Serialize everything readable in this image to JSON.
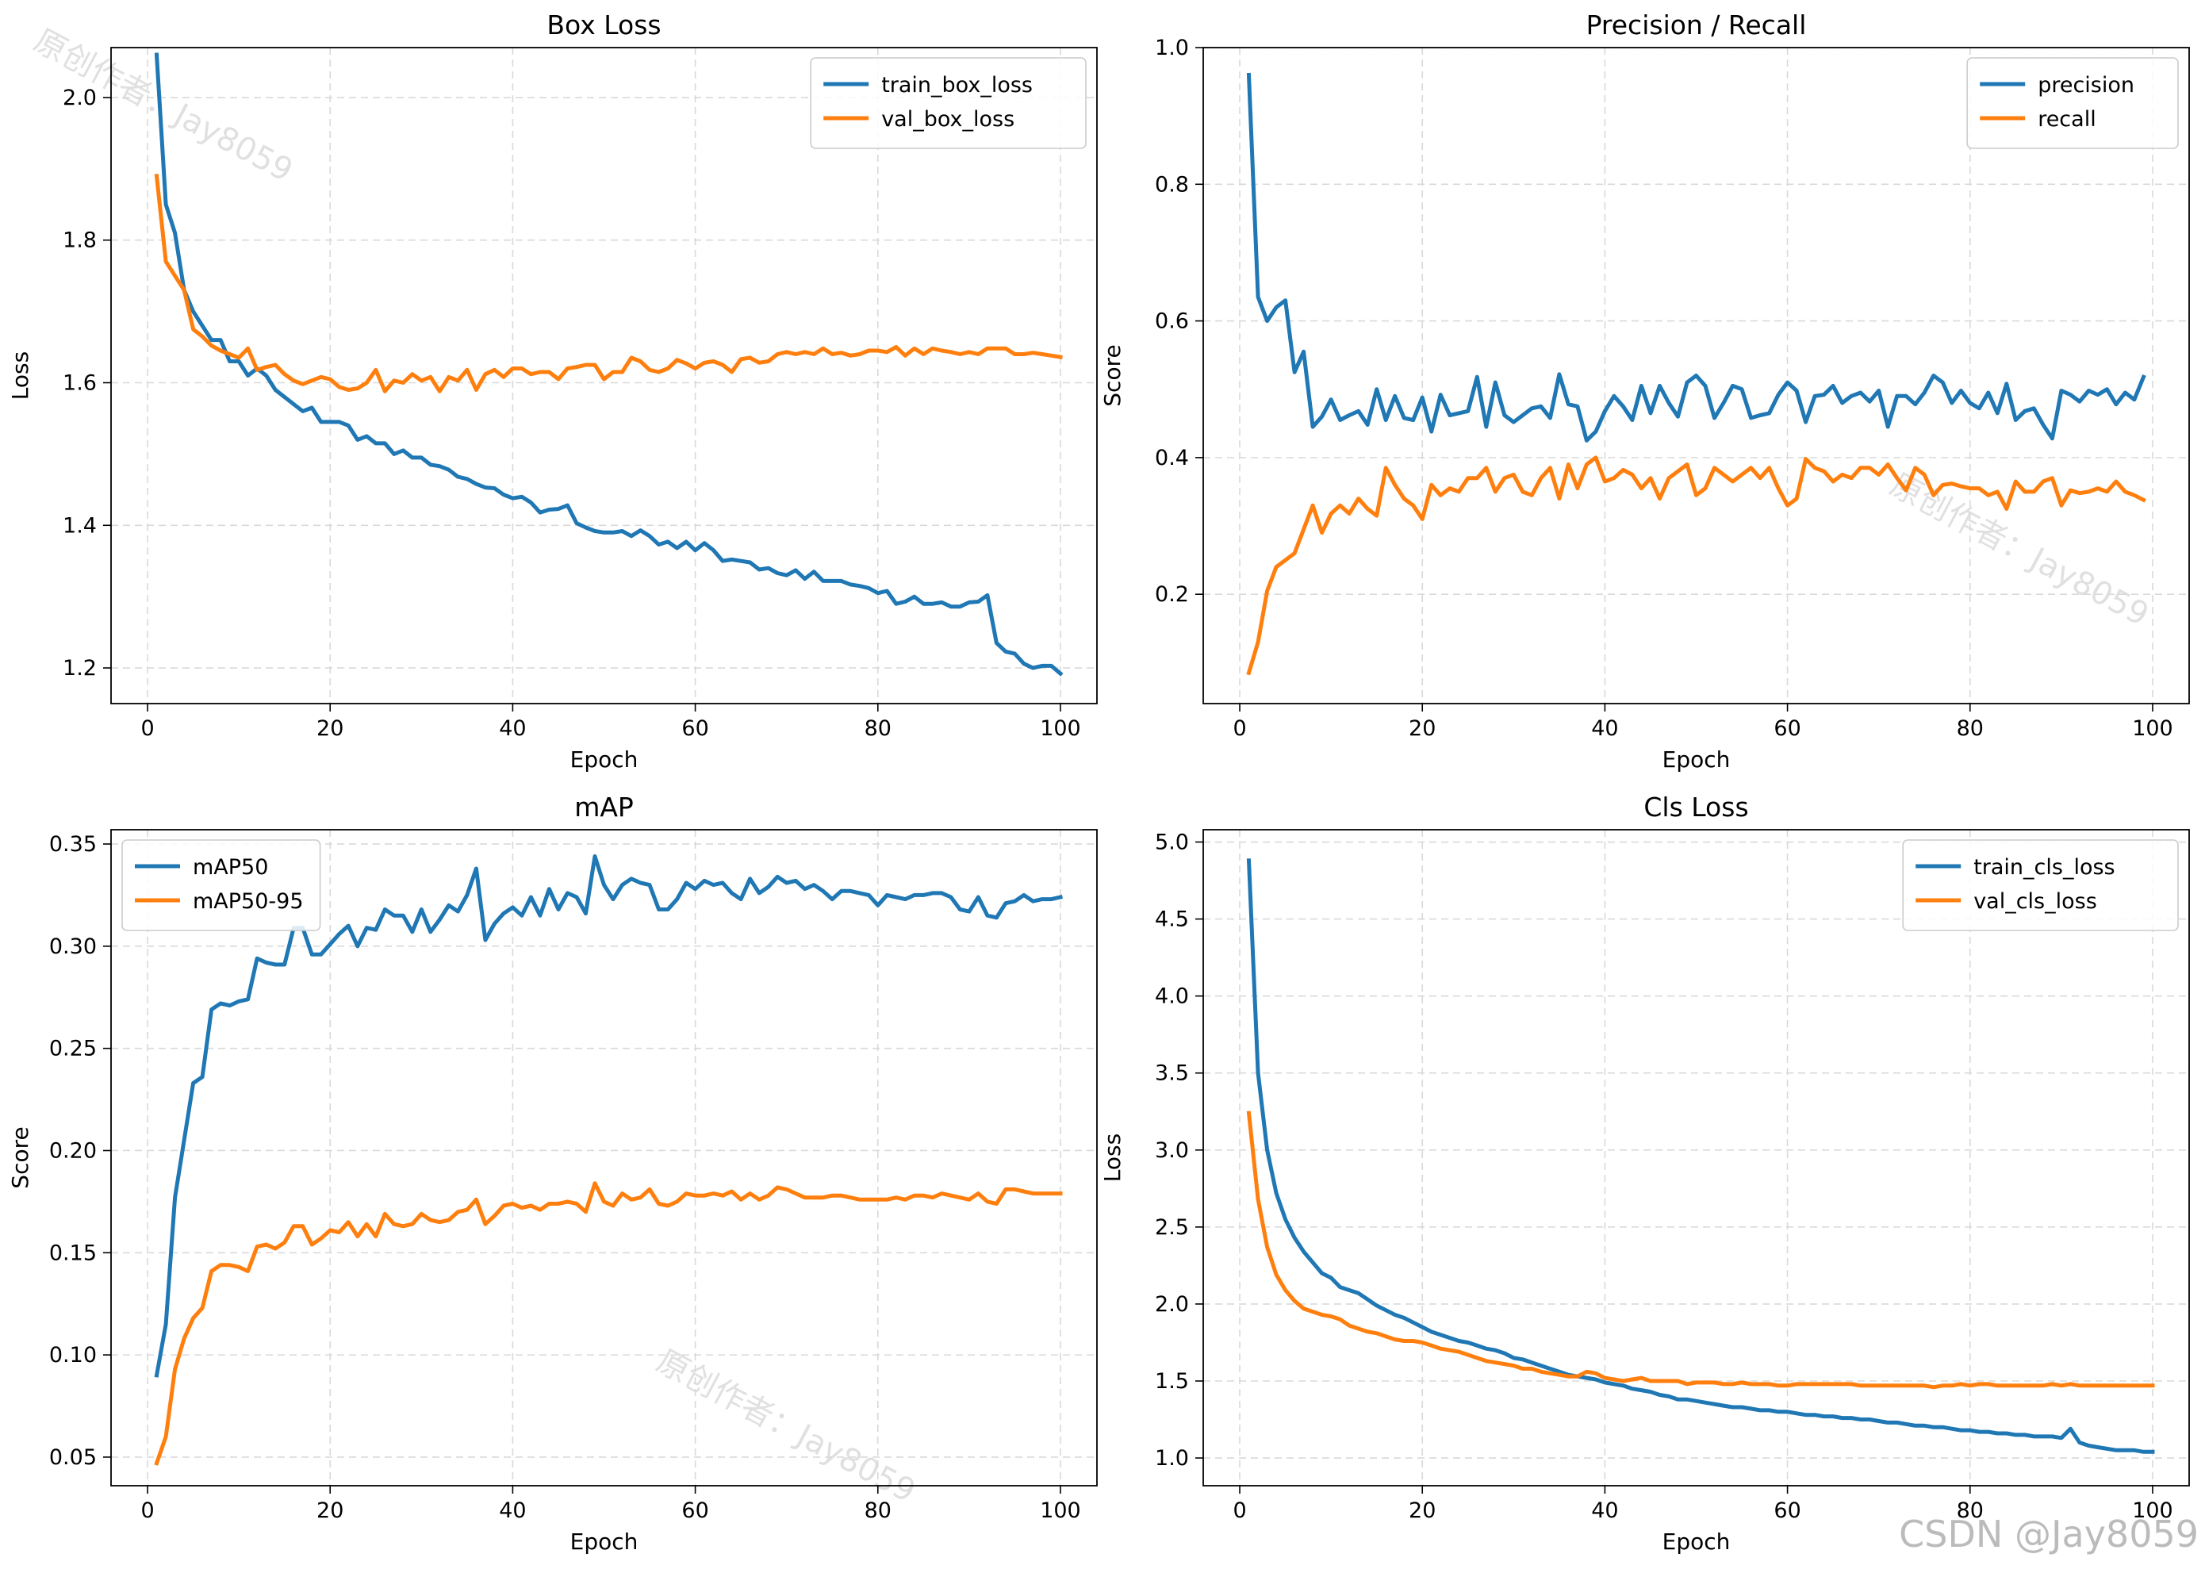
{
  "watermark": {
    "text": "原创作者：Jay8059",
    "footer": "CSDN @Jay8059",
    "color": "#c8c8c8"
  },
  "colors": {
    "blue": "#1f77b4",
    "orange": "#ff7f0e",
    "grid": "#d9d9d9"
  },
  "chart_data": [
    {
      "type": "line",
      "title": "Box Loss",
      "xlabel": "Epoch",
      "ylabel": "Loss",
      "xlim": [
        -4,
        104
      ],
      "ylim": [
        1.15,
        2.07
      ],
      "xticks": [
        0,
        20,
        40,
        60,
        80,
        100
      ],
      "yticks": [
        1.2,
        1.4,
        1.6,
        1.8,
        2.0
      ],
      "ytick_labels": [
        "1.2",
        "1.4",
        "1.6",
        "1.8",
        "2.0"
      ],
      "grid": true,
      "legend": "top-right",
      "series": [
        {
          "name": "train_box_loss",
          "color": "#1f77b4",
          "y": [
            2.06,
            1.85,
            1.81,
            1.73,
            1.7,
            1.68,
            1.66,
            1.66,
            1.63,
            1.63,
            1.61,
            1.62,
            1.61,
            1.59,
            1.58,
            1.57,
            1.56,
            1.565,
            1.545,
            1.545,
            1.545,
            1.54,
            1.52,
            1.525,
            1.515,
            1.515,
            1.5,
            1.505,
            1.495,
            1.495,
            1.485,
            1.483,
            1.478,
            1.468,
            1.465,
            1.458,
            1.453,
            1.452,
            1.443,
            1.438,
            1.44,
            1.432,
            1.418,
            1.422,
            1.423,
            1.428,
            1.403,
            1.397,
            1.392,
            1.39,
            1.39,
            1.392,
            1.385,
            1.393,
            1.385,
            1.373,
            1.377,
            1.368,
            1.377,
            1.365,
            1.375,
            1.365,
            1.35,
            1.352,
            1.35,
            1.348,
            1.338,
            1.34,
            1.333,
            1.33,
            1.337,
            1.325,
            1.335,
            1.322,
            1.322,
            1.322,
            1.317,
            1.315,
            1.312,
            1.305,
            1.308,
            1.29,
            1.293,
            1.3,
            1.29,
            1.29,
            1.292,
            1.286,
            1.286,
            1.292,
            1.293,
            1.302,
            1.235,
            1.223,
            1.22,
            1.206,
            1.2,
            1.203,
            1.203,
            1.192
          ]
        },
        {
          "name": "val_box_loss",
          "color": "#ff7f0e",
          "y": [
            1.89,
            1.77,
            1.75,
            1.73,
            1.675,
            1.665,
            1.652,
            1.645,
            1.64,
            1.635,
            1.648,
            1.618,
            1.622,
            1.625,
            1.612,
            1.603,
            1.598,
            1.603,
            1.608,
            1.605,
            1.594,
            1.59,
            1.592,
            1.6,
            1.618,
            1.588,
            1.603,
            1.6,
            1.612,
            1.603,
            1.608,
            1.588,
            1.608,
            1.603,
            1.618,
            1.59,
            1.612,
            1.618,
            1.608,
            1.62,
            1.62,
            1.612,
            1.615,
            1.615,
            1.605,
            1.62,
            1.622,
            1.625,
            1.625,
            1.605,
            1.615,
            1.615,
            1.635,
            1.63,
            1.618,
            1.615,
            1.62,
            1.632,
            1.627,
            1.62,
            1.628,
            1.63,
            1.625,
            1.615,
            1.633,
            1.635,
            1.628,
            1.63,
            1.64,
            1.643,
            1.64,
            1.643,
            1.64,
            1.648,
            1.64,
            1.642,
            1.638,
            1.64,
            1.645,
            1.645,
            1.643,
            1.65,
            1.638,
            1.648,
            1.64,
            1.648,
            1.645,
            1.643,
            1.64,
            1.643,
            1.64,
            1.648,
            1.648,
            1.648,
            1.64,
            1.64,
            1.642,
            1.64,
            1.638,
            1.636
          ]
        }
      ]
    },
    {
      "type": "line",
      "title": "Precision / Recall",
      "xlabel": "Epoch",
      "ylabel": "Score",
      "xlim": [
        -4,
        104
      ],
      "ylim": [
        0.04,
        1.0
      ],
      "xticks": [
        0,
        20,
        40,
        60,
        80,
        100
      ],
      "yticks": [
        0.2,
        0.4,
        0.6,
        0.8,
        1.0
      ],
      "ytick_labels": [
        "0.2",
        "0.4",
        "0.6",
        "0.8",
        "1.0"
      ],
      "grid": true,
      "legend": "top-right",
      "series": [
        {
          "name": "precision",
          "color": "#1f77b4",
          "y": [
            0.96,
            0.635,
            0.6,
            0.62,
            0.63,
            0.525,
            0.555,
            0.445,
            0.46,
            0.485,
            0.455,
            0.462,
            0.468,
            0.448,
            0.5,
            0.455,
            0.49,
            0.458,
            0.455,
            0.488,
            0.438,
            0.492,
            0.462,
            0.465,
            0.468,
            0.518,
            0.445,
            0.51,
            0.462,
            0.452,
            0.462,
            0.472,
            0.475,
            0.458,
            0.522,
            0.478,
            0.475,
            0.425,
            0.438,
            0.468,
            0.49,
            0.475,
            0.455,
            0.505,
            0.465,
            0.505,
            0.48,
            0.46,
            0.51,
            0.52,
            0.505,
            0.458,
            0.48,
            0.505,
            0.5,
            0.458,
            0.462,
            0.465,
            0.492,
            0.51,
            0.498,
            0.452,
            0.49,
            0.492,
            0.505,
            0.48,
            0.49,
            0.495,
            0.482,
            0.498,
            0.445,
            0.49,
            0.49,
            0.478,
            0.495,
            0.52,
            0.51,
            0.48,
            0.498,
            0.48,
            0.472,
            0.495,
            0.465,
            0.508,
            0.455,
            0.468,
            0.472,
            0.448,
            0.428,
            0.498,
            0.492,
            0.482,
            0.498,
            0.492,
            0.5,
            0.478,
            0.495,
            0.485,
            0.518
          ]
        },
        {
          "name": "recall",
          "color": "#ff7f0e",
          "y": [
            0.085,
            0.13,
            0.205,
            0.24,
            0.25,
            0.26,
            0.295,
            0.33,
            0.29,
            0.318,
            0.33,
            0.318,
            0.34,
            0.325,
            0.315,
            0.385,
            0.36,
            0.34,
            0.33,
            0.31,
            0.36,
            0.345,
            0.355,
            0.35,
            0.37,
            0.37,
            0.385,
            0.35,
            0.37,
            0.375,
            0.35,
            0.345,
            0.37,
            0.385,
            0.34,
            0.39,
            0.355,
            0.39,
            0.4,
            0.365,
            0.37,
            0.382,
            0.375,
            0.355,
            0.37,
            0.34,
            0.37,
            0.38,
            0.39,
            0.345,
            0.355,
            0.385,
            0.375,
            0.365,
            0.375,
            0.385,
            0.37,
            0.385,
            0.355,
            0.33,
            0.34,
            0.398,
            0.385,
            0.38,
            0.365,
            0.375,
            0.37,
            0.385,
            0.385,
            0.375,
            0.39,
            0.37,
            0.352,
            0.385,
            0.375,
            0.345,
            0.36,
            0.362,
            0.358,
            0.355,
            0.355,
            0.345,
            0.35,
            0.325,
            0.365,
            0.35,
            0.35,
            0.365,
            0.37,
            0.33,
            0.352,
            0.348,
            0.35,
            0.355,
            0.35,
            0.365,
            0.35,
            0.345,
            0.338
          ]
        }
      ]
    },
    {
      "type": "line",
      "title": "mAP",
      "xlabel": "Epoch",
      "ylabel": "Score",
      "xlim": [
        -4,
        104
      ],
      "ylim": [
        0.036,
        0.357
      ],
      "xticks": [
        0,
        20,
        40,
        60,
        80,
        100
      ],
      "yticks": [
        0.05,
        0.1,
        0.15,
        0.2,
        0.25,
        0.3,
        0.35
      ],
      "ytick_labels": [
        "0.05",
        "0.10",
        "0.15",
        "0.20",
        "0.25",
        "0.30",
        "0.35"
      ],
      "grid": true,
      "legend": "top-left",
      "series": [
        {
          "name": "mAP50",
          "color": "#1f77b4",
          "y": [
            0.09,
            0.115,
            0.177,
            0.205,
            0.233,
            0.236,
            0.269,
            0.272,
            0.271,
            0.273,
            0.274,
            0.294,
            0.292,
            0.291,
            0.291,
            0.309,
            0.309,
            0.296,
            0.296,
            0.301,
            0.306,
            0.31,
            0.3,
            0.309,
            0.308,
            0.318,
            0.315,
            0.315,
            0.307,
            0.318,
            0.307,
            0.313,
            0.32,
            0.317,
            0.325,
            0.338,
            0.303,
            0.311,
            0.316,
            0.319,
            0.315,
            0.324,
            0.315,
            0.328,
            0.318,
            0.326,
            0.324,
            0.316,
            0.344,
            0.33,
            0.323,
            0.33,
            0.333,
            0.331,
            0.33,
            0.318,
            0.318,
            0.323,
            0.331,
            0.328,
            0.332,
            0.33,
            0.331,
            0.326,
            0.323,
            0.333,
            0.326,
            0.329,
            0.334,
            0.331,
            0.332,
            0.328,
            0.33,
            0.327,
            0.323,
            0.327,
            0.327,
            0.326,
            0.325,
            0.32,
            0.325,
            0.324,
            0.323,
            0.325,
            0.325,
            0.326,
            0.326,
            0.324,
            0.318,
            0.317,
            0.324,
            0.315,
            0.314,
            0.321,
            0.322,
            0.325,
            0.322,
            0.323,
            0.323,
            0.324
          ]
        },
        {
          "name": "mAP50-95",
          "color": "#ff7f0e",
          "y": [
            0.047,
            0.06,
            0.093,
            0.108,
            0.118,
            0.123,
            0.141,
            0.144,
            0.144,
            0.143,
            0.141,
            0.153,
            0.154,
            0.152,
            0.155,
            0.163,
            0.163,
            0.154,
            0.157,
            0.161,
            0.16,
            0.165,
            0.158,
            0.164,
            0.158,
            0.169,
            0.164,
            0.163,
            0.164,
            0.169,
            0.166,
            0.165,
            0.166,
            0.17,
            0.171,
            0.176,
            0.164,
            0.168,
            0.173,
            0.174,
            0.172,
            0.173,
            0.171,
            0.174,
            0.174,
            0.175,
            0.174,
            0.17,
            0.184,
            0.175,
            0.173,
            0.179,
            0.176,
            0.177,
            0.181,
            0.174,
            0.173,
            0.175,
            0.179,
            0.178,
            0.178,
            0.179,
            0.178,
            0.18,
            0.176,
            0.179,
            0.176,
            0.178,
            0.182,
            0.181,
            0.179,
            0.177,
            0.177,
            0.177,
            0.178,
            0.178,
            0.177,
            0.176,
            0.176,
            0.176,
            0.176,
            0.177,
            0.176,
            0.178,
            0.178,
            0.177,
            0.179,
            0.178,
            0.177,
            0.176,
            0.179,
            0.175,
            0.174,
            0.181,
            0.181,
            0.18,
            0.179,
            0.179,
            0.179,
            0.179
          ]
        }
      ]
    },
    {
      "type": "line",
      "title": "Cls Loss",
      "xlabel": "Epoch",
      "ylabel": "Loss",
      "xlim": [
        -4,
        104
      ],
      "ylim": [
        0.82,
        5.08
      ],
      "xticks": [
        0,
        20,
        40,
        60,
        80,
        100
      ],
      "yticks": [
        1.0,
        1.5,
        2.0,
        2.5,
        3.0,
        3.5,
        4.0,
        4.5,
        5.0
      ],
      "ytick_labels": [
        "1.0",
        "1.5",
        "2.0",
        "2.5",
        "3.0",
        "3.5",
        "4.0",
        "4.5",
        "5.0"
      ],
      "grid": true,
      "legend": "top-right",
      "series": [
        {
          "name": "train_cls_loss",
          "color": "#1f77b4",
          "y": [
            4.88,
            3.5,
            3.0,
            2.72,
            2.55,
            2.43,
            2.34,
            2.27,
            2.2,
            2.17,
            2.11,
            2.09,
            2.07,
            2.03,
            1.99,
            1.96,
            1.93,
            1.91,
            1.88,
            1.85,
            1.82,
            1.8,
            1.78,
            1.76,
            1.75,
            1.73,
            1.71,
            1.7,
            1.68,
            1.65,
            1.64,
            1.62,
            1.6,
            1.58,
            1.56,
            1.54,
            1.53,
            1.52,
            1.51,
            1.49,
            1.48,
            1.47,
            1.45,
            1.44,
            1.43,
            1.41,
            1.4,
            1.38,
            1.38,
            1.37,
            1.36,
            1.35,
            1.34,
            1.33,
            1.33,
            1.32,
            1.31,
            1.31,
            1.3,
            1.3,
            1.29,
            1.28,
            1.28,
            1.27,
            1.27,
            1.26,
            1.26,
            1.25,
            1.25,
            1.24,
            1.23,
            1.23,
            1.22,
            1.21,
            1.21,
            1.2,
            1.2,
            1.19,
            1.18,
            1.18,
            1.17,
            1.17,
            1.16,
            1.16,
            1.15,
            1.15,
            1.14,
            1.14,
            1.14,
            1.13,
            1.19,
            1.1,
            1.08,
            1.07,
            1.06,
            1.05,
            1.05,
            1.05,
            1.04,
            1.04
          ]
        },
        {
          "name": "val_cls_loss",
          "color": "#ff7f0e",
          "y": [
            3.24,
            2.68,
            2.37,
            2.19,
            2.09,
            2.02,
            1.97,
            1.95,
            1.93,
            1.92,
            1.9,
            1.86,
            1.84,
            1.82,
            1.81,
            1.79,
            1.77,
            1.76,
            1.76,
            1.75,
            1.73,
            1.71,
            1.7,
            1.69,
            1.67,
            1.65,
            1.63,
            1.62,
            1.61,
            1.6,
            1.58,
            1.58,
            1.56,
            1.55,
            1.54,
            1.53,
            1.53,
            1.56,
            1.55,
            1.52,
            1.51,
            1.5,
            1.51,
            1.52,
            1.5,
            1.5,
            1.5,
            1.5,
            1.48,
            1.49,
            1.49,
            1.49,
            1.48,
            1.48,
            1.49,
            1.48,
            1.48,
            1.48,
            1.47,
            1.47,
            1.48,
            1.48,
            1.48,
            1.48,
            1.48,
            1.48,
            1.48,
            1.47,
            1.47,
            1.47,
            1.47,
            1.47,
            1.47,
            1.47,
            1.47,
            1.46,
            1.47,
            1.47,
            1.48,
            1.47,
            1.48,
            1.48,
            1.47,
            1.47,
            1.47,
            1.47,
            1.47,
            1.47,
            1.48,
            1.47,
            1.48,
            1.47,
            1.47,
            1.47,
            1.47,
            1.47,
            1.47,
            1.47,
            1.47,
            1.47
          ]
        }
      ]
    }
  ]
}
